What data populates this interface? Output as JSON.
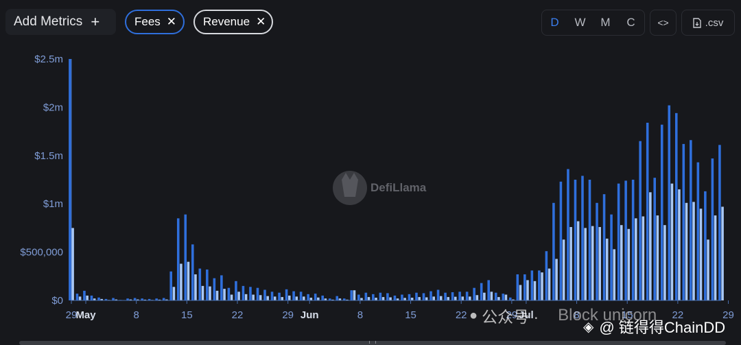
{
  "toolbar": {
    "add_metrics_label": "Add Metrics",
    "add_icon": "plus-icon",
    "chips": [
      {
        "label": "Fees",
        "color": "#2f6fdc"
      },
      {
        "label": "Revenue",
        "color": "#d7d9de"
      }
    ],
    "granularity": [
      "D",
      "W",
      "M",
      "C"
    ],
    "granularity_active": "D",
    "embed_label": "<>",
    "csv_label": ".csv"
  },
  "watermarks": {
    "brand": "DefiLlama",
    "wechat": "公众号 ·",
    "block": "Block unicorn",
    "chaindd": "@ 链得得ChainDD"
  },
  "chart_data": {
    "type": "bar",
    "ylabel": "",
    "xlabel": "",
    "ylim": [
      0,
      2500000
    ],
    "yticks": [
      "$0",
      "$500,000",
      "$1m",
      "$1.5m",
      "$2m",
      "$2.5m"
    ],
    "ytick_values": [
      0,
      500000,
      1000000,
      1500000,
      2000000,
      2500000
    ],
    "xticks": [
      "29",
      "May",
      "8",
      "15",
      "22",
      "29",
      "Jun",
      "8",
      "15",
      "22",
      "29",
      "Jul",
      "8",
      "15",
      "22",
      "29"
    ],
    "xtick_days": [
      0,
      2,
      9,
      16,
      23,
      30,
      33,
      40,
      47,
      54,
      61,
      63,
      70,
      77,
      84,
      91
    ],
    "bold_ticks": [
      "May",
      "Jun",
      "Jul"
    ],
    "grid": false,
    "colors": {
      "fees": "#2f6fdc",
      "revenue": "#a9c8f5",
      "axis": "#4a6fae",
      "tick": "#7f9cd6"
    },
    "series": [
      {
        "name": "Fees",
        "values": [
          2500000,
          70000,
          100000,
          50000,
          30000,
          15000,
          25000,
          5000,
          20000,
          25000,
          20000,
          15000,
          20000,
          25000,
          300000,
          850000,
          890000,
          580000,
          330000,
          320000,
          230000,
          260000,
          130000,
          200000,
          150000,
          140000,
          130000,
          110000,
          90000,
          80000,
          115000,
          95000,
          90000,
          65000,
          70000,
          50000,
          20000,
          45000,
          20000,
          105000,
          60000,
          80000,
          65000,
          80000,
          75000,
          50000,
          60000,
          65000,
          80000,
          75000,
          95000,
          110000,
          80000,
          85000,
          90000,
          90000,
          130000,
          180000,
          210000,
          80000,
          70000,
          30000,
          270000,
          270000,
          310000,
          310000,
          510000,
          1010000,
          1230000,
          1360000,
          1250000,
          1290000,
          1250000,
          1010000,
          1100000,
          890000,
          1210000,
          1240000,
          1250000,
          1650000,
          1840000,
          1270000,
          1820000,
          2020000,
          1940000,
          1620000,
          1660000,
          1430000,
          1130000,
          1470000,
          1610000
        ]
      },
      {
        "name": "Revenue",
        "values": [
          750000,
          40000,
          50000,
          20000,
          15000,
          5000,
          10000,
          2000,
          10000,
          10000,
          8000,
          5000,
          8000,
          10000,
          140000,
          380000,
          400000,
          270000,
          150000,
          145000,
          100000,
          120000,
          60000,
          90000,
          65000,
          60000,
          55000,
          45000,
          40000,
          35000,
          50000,
          40000,
          40000,
          28000,
          30000,
          20000,
          8000,
          20000,
          8000,
          105000,
          25000,
          35000,
          28000,
          35000,
          32000,
          20000,
          26000,
          28000,
          35000,
          32000,
          40000,
          45000,
          35000,
          38000,
          40000,
          40000,
          55000,
          80000,
          90000,
          35000,
          60000,
          10000,
          160000,
          210000,
          200000,
          290000,
          330000,
          430000,
          630000,
          760000,
          820000,
          750000,
          770000,
          760000,
          640000,
          530000,
          780000,
          740000,
          850000,
          870000,
          1120000,
          880000,
          780000,
          1210000,
          1150000,
          1010000,
          1020000,
          950000,
          630000,
          880000,
          970000
        ]
      }
    ]
  }
}
